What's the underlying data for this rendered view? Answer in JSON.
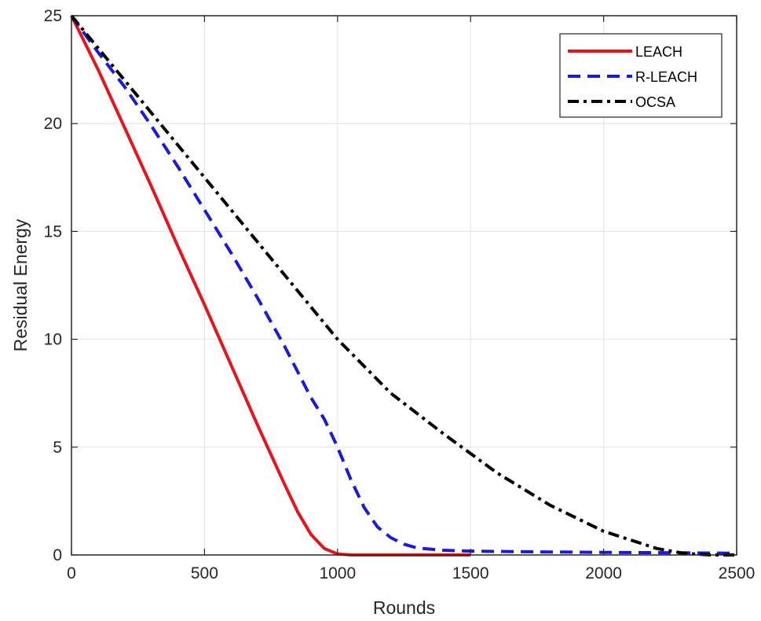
{
  "chart_data": {
    "type": "line",
    "title": "",
    "xlabel": "Rounds",
    "ylabel": "Residual Energy",
    "xlim": [
      0,
      2500
    ],
    "ylim": [
      0,
      25
    ],
    "xticks": [
      0,
      500,
      1000,
      1500,
      2000,
      2500
    ],
    "yticks": [
      0,
      5,
      10,
      15,
      20,
      25
    ],
    "xtick_labels": [
      "0",
      "500",
      "1000",
      "1500",
      "2000",
      "2500"
    ],
    "ytick_labels": [
      "0",
      "5",
      "10",
      "15",
      "20",
      "25"
    ],
    "grid": true,
    "legend_position": "top-right",
    "series": [
      {
        "name": "LEACH",
        "color": "#e8141b",
        "style": "solid",
        "x": [
          0,
          100,
          200,
          300,
          400,
          500,
          600,
          700,
          800,
          850,
          900,
          950,
          1000,
          1050,
          1100,
          1200,
          1300,
          1400,
          1500
        ],
        "y": [
          25,
          22.5,
          19.8,
          17.1,
          14.3,
          11.6,
          8.8,
          6.0,
          3.3,
          2.0,
          0.95,
          0.3,
          0.05,
          0,
          0,
          0,
          0,
          0,
          0
        ]
      },
      {
        "name": "R-LEACH",
        "color": "#1a1adb",
        "style": "dashed",
        "x": [
          0,
          100,
          200,
          300,
          400,
          500,
          600,
          700,
          800,
          900,
          950,
          1000,
          1050,
          1100,
          1150,
          1200,
          1250,
          1300,
          1400,
          1500,
          1700,
          2000,
          2300,
          2500
        ],
        "y": [
          25,
          23.3,
          21.7,
          19.9,
          18.0,
          16.0,
          14.0,
          11.9,
          9.7,
          7.3,
          6.3,
          5.0,
          3.5,
          2.2,
          1.3,
          0.8,
          0.5,
          0.32,
          0.22,
          0.18,
          0.15,
          0.12,
          0.1,
          0.08
        ]
      },
      {
        "name": "OCSA",
        "color": "#000000",
        "style": "dash-dot",
        "x": [
          0,
          200,
          400,
          600,
          800,
          1000,
          1200,
          1400,
          1600,
          1800,
          2000,
          2200,
          2300,
          2400,
          2500
        ],
        "y": [
          25,
          22.0,
          19.0,
          16.0,
          13.0,
          10.0,
          7.5,
          5.6,
          3.8,
          2.3,
          1.1,
          0.3,
          0.08,
          0.0,
          0.0
        ]
      }
    ]
  }
}
